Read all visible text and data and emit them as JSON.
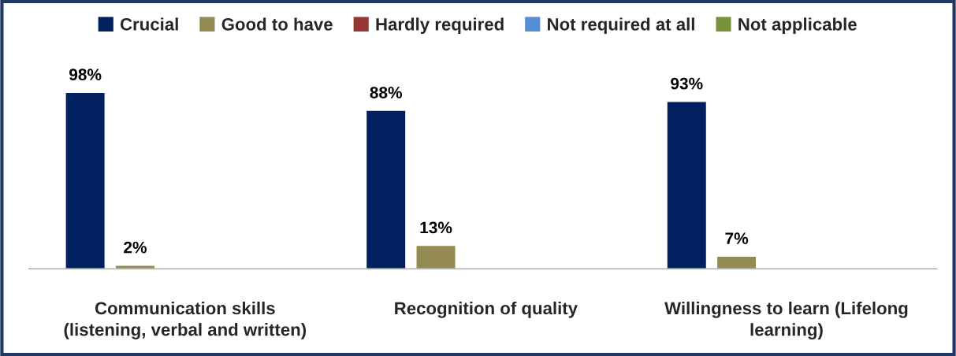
{
  "chart_data": {
    "type": "bar",
    "categories": [
      "Communication skills\n(listening, verbal and written)",
      "Recognition of quality",
      "Willingness to learn (Lifelong\nlearning)"
    ],
    "series": [
      {
        "name": "Crucial",
        "color": "#002060",
        "values": [
          98,
          88,
          93
        ],
        "value_labels": [
          "98%",
          "88%",
          "93%"
        ]
      },
      {
        "name": "Good to have",
        "color": "#948a54",
        "values": [
          2,
          13,
          7
        ],
        "value_labels": [
          "2%",
          "13%",
          "7%"
        ]
      },
      {
        "name": "Hardly required",
        "color": "#953735",
        "values": [
          null,
          null,
          null
        ]
      },
      {
        "name": "Not required at all",
        "color": "#558ed5",
        "values": [
          null,
          null,
          null
        ]
      },
      {
        "name": "Not applicable",
        "color": "#77933c",
        "values": [
          null,
          null,
          null
        ]
      }
    ],
    "legend": "top",
    "grid": false
  }
}
